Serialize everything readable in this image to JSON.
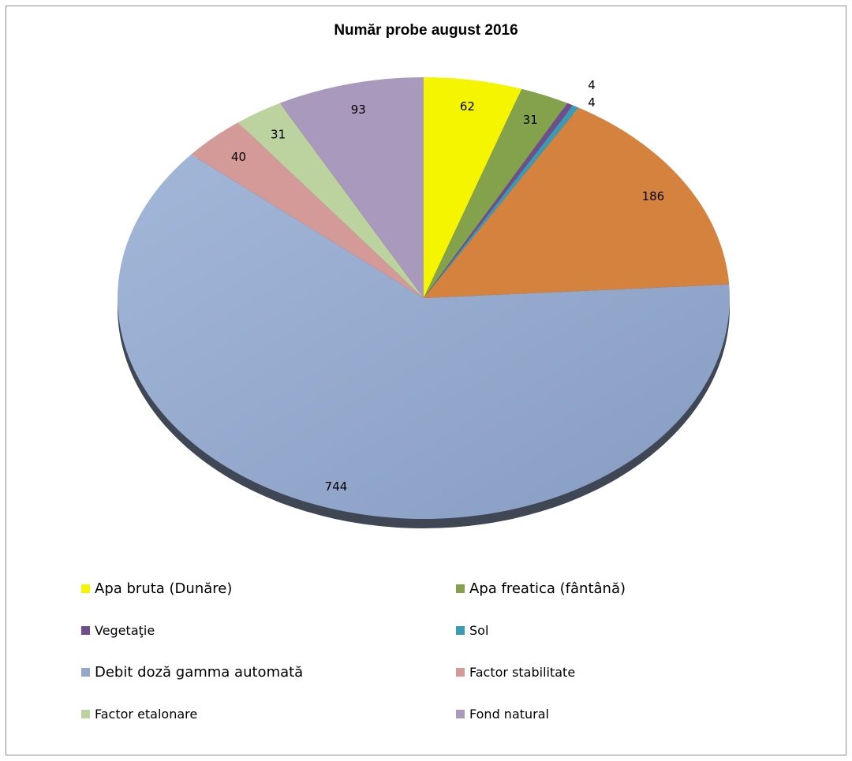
{
  "chart_data": {
    "type": "pie",
    "title": "Număr probe august 2016",
    "series": [
      {
        "name": "Apa bruta (Dunăre)",
        "value": 62,
        "label": "62",
        "color": "#f5f500"
      },
      {
        "name": "Apa freatica (fântână)",
        "value": 31,
        "label": "31",
        "color": "#84a24c"
      },
      {
        "name": "Vegetaţie",
        "value": 4,
        "label": "4",
        "color": "#6e4f8c"
      },
      {
        "name": "Sol",
        "value": 4,
        "label": "4",
        "color": "#3b9bb5"
      },
      {
        "name": "",
        "value": 186,
        "label": "186",
        "color": "#d5823f"
      },
      {
        "name": "Debit doză gamma automată",
        "value": 744,
        "label": "744",
        "color": "#93a9cb"
      },
      {
        "name": "Factor stabilitate",
        "value": 40,
        "label": "40",
        "color": "#d39a98"
      },
      {
        "name": "Factor etalonare",
        "value": 31,
        "label": "31",
        "color": "#bcd3a0"
      },
      {
        "name": "Fond natural",
        "value": 93,
        "label": "93",
        "color": "#a899bd"
      }
    ],
    "legend_position": "bottom"
  }
}
